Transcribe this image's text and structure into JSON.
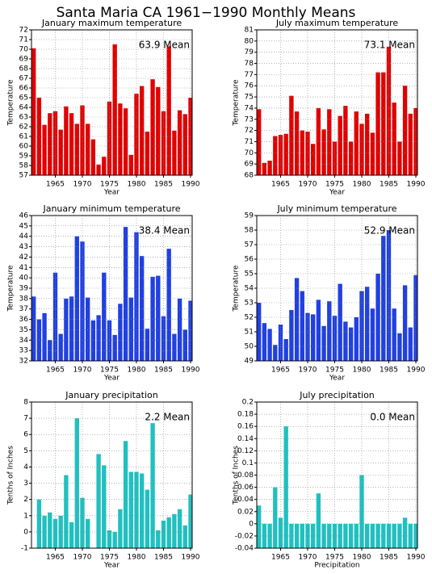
{
  "title": "Santa Maria CA  1961−1990 Monthly Means",
  "chart_data": [
    {
      "type": "bar",
      "title": "January maximum temperature",
      "xlabel": "Year",
      "ylabel": "Temperature",
      "annotation": "63.9 Mean",
      "color": "#e00000",
      "grid": true,
      "x": [
        1961,
        1962,
        1963,
        1964,
        1965,
        1966,
        1967,
        1968,
        1969,
        1970,
        1971,
        1972,
        1973,
        1974,
        1975,
        1976,
        1977,
        1978,
        1979,
        1980,
        1981,
        1982,
        1983,
        1984,
        1985,
        1986,
        1987,
        1988,
        1989,
        1990
      ],
      "values": [
        70.1,
        65.0,
        62.2,
        63.4,
        63.6,
        61.7,
        64.1,
        63.4,
        62.3,
        64.2,
        62.3,
        60.7,
        58.1,
        58.9,
        64.6,
        70.5,
        64.4,
        63.9,
        59.1,
        65.4,
        66.2,
        61.5,
        66.9,
        66.1,
        63.6,
        70.3,
        61.6,
        63.7,
        63.3,
        65.0
      ],
      "xlim": [
        1960.6,
        1990.3
      ],
      "xticks": [
        1965,
        1970,
        1975,
        1980,
        1985,
        1990
      ],
      "ylim": [
        57,
        72
      ],
      "yticks": [
        57,
        58,
        59,
        60,
        61,
        62,
        63,
        64,
        65,
        66,
        67,
        68,
        69,
        70,
        71,
        72
      ]
    },
    {
      "type": "bar",
      "title": "July maximum temperature",
      "xlabel": "Year",
      "ylabel": "Temperature",
      "annotation": "73.1 Mean",
      "color": "#e00000",
      "grid": true,
      "x": [
        1961,
        1962,
        1963,
        1964,
        1965,
        1966,
        1967,
        1968,
        1969,
        1970,
        1971,
        1972,
        1973,
        1974,
        1975,
        1976,
        1977,
        1978,
        1979,
        1980,
        1981,
        1982,
        1983,
        1984,
        1985,
        1986,
        1987,
        1988,
        1989,
        1990
      ],
      "values": [
        73.9,
        69.1,
        69.3,
        71.5,
        71.6,
        71.7,
        75.1,
        73.7,
        72.0,
        71.9,
        70.8,
        74.0,
        72.1,
        73.9,
        71.0,
        73.3,
        74.2,
        71.0,
        73.7,
        72.6,
        73.5,
        71.8,
        77.2,
        77.2,
        79.5,
        74.5,
        71.0,
        76.0,
        73.5,
        74.0
      ],
      "xlim": [
        1960.6,
        1990.3
      ],
      "xticks": [
        1965,
        1970,
        1975,
        1980,
        1985,
        1990
      ],
      "ylim": [
        68,
        81
      ],
      "yticks": [
        68,
        69,
        70,
        71,
        72,
        73,
        74,
        75,
        76,
        77,
        78,
        79,
        80,
        81
      ]
    },
    {
      "type": "bar",
      "title": "January minimum temperature",
      "xlabel": "Year",
      "ylabel": "Temperature",
      "annotation": "38.4 Mean",
      "color": "#2040e0",
      "grid": true,
      "x": [
        1961,
        1962,
        1963,
        1964,
        1965,
        1966,
        1967,
        1968,
        1969,
        1970,
        1971,
        1972,
        1973,
        1974,
        1975,
        1976,
        1977,
        1978,
        1979,
        1980,
        1981,
        1982,
        1983,
        1984,
        1985,
        1986,
        1987,
        1988,
        1989,
        1990
      ],
      "values": [
        38.2,
        36.0,
        36.6,
        34.0,
        40.5,
        34.6,
        38.0,
        38.2,
        44.0,
        43.5,
        38.1,
        35.9,
        36.4,
        40.5,
        35.9,
        34.5,
        37.5,
        44.9,
        38.1,
        44.4,
        42.1,
        35.1,
        40.1,
        40.2,
        36.3,
        42.8,
        34.6,
        38.0,
        35.0,
        37.8
      ],
      "xlim": [
        1960.6,
        1990.3
      ],
      "xticks": [
        1965,
        1970,
        1975,
        1980,
        1985,
        1990
      ],
      "ylim": [
        32,
        46
      ],
      "yticks": [
        32,
        33,
        34,
        35,
        36,
        37,
        38,
        39,
        40,
        41,
        42,
        43,
        44,
        45,
        46
      ]
    },
    {
      "type": "bar",
      "title": "July minimum temperature",
      "xlabel": "Year",
      "ylabel": "Temperature",
      "annotation": "52.9 Mean",
      "color": "#2040e0",
      "grid": true,
      "x": [
        1961,
        1962,
        1963,
        1964,
        1965,
        1966,
        1967,
        1968,
        1969,
        1970,
        1971,
        1972,
        1973,
        1974,
        1975,
        1976,
        1977,
        1978,
        1979,
        1980,
        1981,
        1982,
        1983,
        1984,
        1985,
        1986,
        1987,
        1988,
        1989,
        1990
      ],
      "values": [
        53.0,
        51.6,
        51.2,
        50.1,
        51.5,
        50.5,
        52.5,
        54.7,
        53.8,
        52.3,
        52.2,
        53.2,
        51.4,
        53.1,
        52.1,
        54.3,
        51.7,
        51.3,
        52.0,
        53.8,
        54.1,
        52.6,
        55.0,
        57.6,
        58.0,
        52.6,
        50.9,
        54.2,
        51.3,
        54.9
      ],
      "xlim": [
        1960.6,
        1990.3
      ],
      "xticks": [
        1965,
        1970,
        1975,
        1980,
        1985,
        1990
      ],
      "ylim": [
        49,
        59
      ],
      "yticks": [
        49,
        50,
        51,
        52,
        53,
        54,
        55,
        56,
        57,
        58,
        59
      ]
    },
    {
      "type": "bar",
      "title": "January precipitation",
      "xlabel": "Year",
      "ylabel": "Tenths of Inches",
      "annotation": "2.2 Mean",
      "color": "#20c0c0",
      "grid": true,
      "x": [
        1961,
        1962,
        1963,
        1964,
        1965,
        1966,
        1967,
        1968,
        1969,
        1970,
        1971,
        1972,
        1973,
        1974,
        1975,
        1976,
        1977,
        1978,
        1979,
        1980,
        1981,
        1982,
        1983,
        1984,
        1985,
        1986,
        1987,
        1988,
        1989,
        1990
      ],
      "values": [
        null,
        2.0,
        1.0,
        1.2,
        0.8,
        1.0,
        3.5,
        0.6,
        7.0,
        2.1,
        0.8,
        null,
        4.8,
        4.1,
        0.1,
        0.0,
        1.4,
        5.6,
        3.7,
        3.7,
        3.6,
        2.6,
        6.7,
        0.1,
        0.7,
        0.9,
        1.1,
        1.4,
        0.4,
        2.3
      ],
      "xlim": [
        1960.6,
        1990.3
      ],
      "xticks": [
        1965,
        1970,
        1975,
        1980,
        1985,
        1990
      ],
      "ylim": [
        -1,
        8
      ],
      "yticks": [
        -1,
        0,
        1,
        2,
        3,
        4,
        5,
        6,
        7,
        8
      ]
    },
    {
      "type": "bar",
      "title": "July precipitation",
      "xlabel": "Precipitation",
      "ylabel": "Tenths of Inches",
      "annotation": "0.0 Mean",
      "color": "#20c0c0",
      "grid": true,
      "x": [
        1961,
        1962,
        1963,
        1964,
        1965,
        1966,
        1967,
        1968,
        1969,
        1970,
        1971,
        1972,
        1973,
        1974,
        1975,
        1976,
        1977,
        1978,
        1979,
        1980,
        1981,
        1982,
        1983,
        1984,
        1985,
        1986,
        1987,
        1988,
        1989,
        1990
      ],
      "values": [
        0.03,
        0,
        0,
        0.06,
        0.01,
        0.16,
        0,
        0,
        0,
        0,
        0,
        0.05,
        0,
        0,
        0,
        0,
        0,
        0,
        0,
        0.08,
        0,
        0,
        0,
        0,
        0,
        0,
        0,
        0.01,
        0,
        0
      ],
      "xlim": [
        1960.6,
        1990.3
      ],
      "xticks": [
        1965,
        1970,
        1975,
        1980,
        1985,
        1990
      ],
      "ylim": [
        -0.04,
        0.2
      ],
      "yticks": [
        -0.04,
        -0.02,
        0,
        0.02,
        0.04,
        0.06,
        0.08,
        0.1,
        0.12,
        0.14,
        0.16,
        0.18,
        0.2
      ]
    }
  ]
}
